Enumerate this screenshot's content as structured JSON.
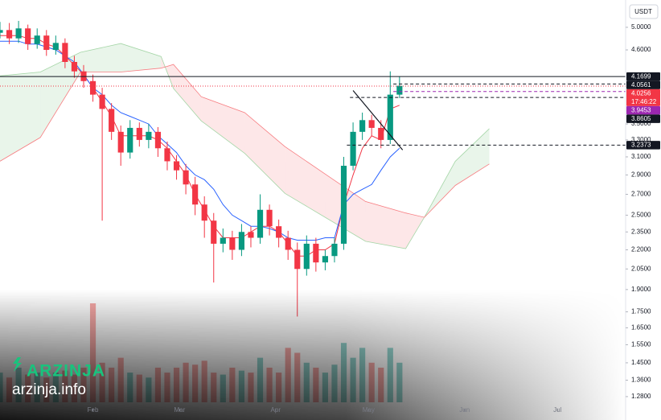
{
  "chart_data": {
    "type": "candlestick",
    "currency": "USDT",
    "watermark": {
      "brand": "ARZINJA",
      "site": "arzinja.info"
    },
    "log_scale": true,
    "grid": false,
    "up_color": "#089981",
    "down_color": "#f23645",
    "volume_up_color": "rgba(38,166,154,0.5)",
    "volume_down_color": "rgba(239,83,80,0.5)",
    "conversion_color": "#f23645",
    "base_color": "#2962ff",
    "cloud_up_color": "rgba(76,175,80,0.12)",
    "cloud_down_color": "rgba(242,54,69,0.12)",
    "span_a_color": "#a5d6a7",
    "span_b_color": "#f77c80",
    "xlim": [
      1,
      203
    ],
    "xticks": [
      {
        "value": 31,
        "label": "Feb"
      },
      {
        "value": 59,
        "label": "Mar"
      },
      {
        "value": 90,
        "label": "Apr"
      },
      {
        "value": 120,
        "label": "May"
      },
      {
        "value": 151,
        "label": "Jun"
      },
      {
        "value": 181,
        "label": "Jul"
      }
    ],
    "ylim": [
      1.224,
      5.53
    ],
    "yticks": [
      {
        "value": 5,
        "label": "5.0000"
      },
      {
        "value": 4.6,
        "label": "4.6000"
      },
      {
        "value": 3.5,
        "label": "3.5000"
      },
      {
        "value": 3.3,
        "label": "3.3000"
      },
      {
        "value": 3.1,
        "label": "3.1000"
      },
      {
        "value": 2.9,
        "label": "2.9000"
      },
      {
        "value": 2.7,
        "label": "2.7000"
      },
      {
        "value": 2.5,
        "label": "2.5000"
      },
      {
        "value": 2.35,
        "label": "2.3500"
      },
      {
        "value": 2.2,
        "label": "2.2000"
      },
      {
        "value": 2.05,
        "label": "2.0500"
      },
      {
        "value": 1.9,
        "label": "1.9000"
      },
      {
        "value": 1.75,
        "label": "1.7500"
      },
      {
        "value": 1.65,
        "label": "1.6500"
      },
      {
        "value": 1.55,
        "label": "1.5500"
      },
      {
        "value": 1.45,
        "label": "1.4500"
      },
      {
        "value": 1.36,
        "label": "1.3600"
      },
      {
        "value": 1.28,
        "label": "1.2800"
      }
    ],
    "x": [
      1,
      4,
      7,
      10,
      13,
      16,
      19,
      22,
      25,
      28,
      31,
      34,
      37,
      40,
      43,
      46,
      49,
      52,
      55,
      58,
      61,
      64,
      67,
      70,
      73,
      76,
      79,
      82,
      85,
      88,
      91,
      94,
      97,
      100,
      103,
      106,
      109,
      112,
      115,
      118,
      121,
      124,
      127,
      130
    ],
    "open": [
      4.9,
      4.95,
      4.8,
      4.98,
      4.7,
      4.85,
      4.6,
      4.72,
      4.4,
      4.25,
      4.1,
      3.9,
      3.7,
      3.4,
      3.15,
      3.45,
      3.3,
      3.4,
      3.2,
      3.05,
      2.95,
      2.8,
      2.6,
      2.45,
      2.25,
      2.3,
      2.2,
      2.35,
      2.3,
      2.55,
      2.4,
      2.3,
      2.2,
      2.05,
      2.25,
      2.1,
      2.15,
      2.25,
      3.0,
      3.4,
      3.55,
      3.45,
      3.3,
      3.9
    ],
    "high": [
      5.1,
      5.08,
      5.12,
      5.05,
      4.98,
      4.95,
      4.85,
      4.8,
      4.5,
      4.35,
      4.2,
      4.0,
      3.78,
      3.48,
      3.55,
      3.52,
      3.5,
      3.46,
      3.28,
      3.12,
      3.02,
      2.88,
      2.68,
      2.52,
      2.38,
      2.36,
      2.42,
      2.4,
      2.7,
      2.6,
      2.46,
      2.36,
      2.26,
      2.32,
      2.3,
      2.2,
      2.3,
      3.1,
      3.52,
      3.65,
      3.62,
      3.55,
      4.25,
      4.17
    ],
    "low": [
      4.8,
      4.7,
      4.72,
      4.6,
      4.62,
      4.5,
      4.52,
      4.3,
      4.15,
      4.0,
      3.8,
      2.45,
      3.3,
      3.0,
      3.08,
      3.22,
      3.2,
      3.1,
      2.95,
      2.85,
      2.7,
      2.5,
      2.3,
      1.95,
      2.18,
      2.12,
      2.15,
      2.22,
      2.25,
      2.32,
      2.22,
      2.12,
      1.72,
      2.0,
      2.03,
      2.04,
      2.1,
      2.2,
      2.95,
      3.3,
      3.35,
      3.2,
      3.25,
      3.85
    ],
    "close": [
      4.95,
      4.8,
      4.98,
      4.7,
      4.85,
      4.6,
      4.72,
      4.4,
      4.25,
      4.1,
      3.9,
      3.7,
      3.4,
      3.15,
      3.45,
      3.3,
      3.4,
      3.2,
      3.05,
      2.95,
      2.8,
      2.6,
      2.45,
      2.25,
      2.3,
      2.2,
      2.35,
      2.3,
      2.55,
      2.4,
      2.3,
      2.2,
      2.05,
      2.25,
      2.1,
      2.15,
      2.25,
      3.0,
      3.4,
      3.55,
      3.45,
      3.3,
      3.9,
      4.03
    ],
    "volume": [
      30,
      25,
      35,
      28,
      30,
      25,
      30,
      32,
      28,
      35,
      100,
      40,
      35,
      45,
      30,
      28,
      25,
      35,
      30,
      35,
      40,
      38,
      42,
      30,
      28,
      35,
      32,
      30,
      45,
      35,
      30,
      55,
      50,
      40,
      35,
      30,
      38,
      60,
      45,
      55,
      40,
      35,
      55,
      40
    ],
    "conversion": [
      4.85,
      4.85,
      4.85,
      4.8,
      4.8,
      4.7,
      4.65,
      4.5,
      4.35,
      4.2,
      4.0,
      3.8,
      3.6,
      3.35,
      3.35,
      3.35,
      3.35,
      3.3,
      3.2,
      3.05,
      2.9,
      2.7,
      2.55,
      2.4,
      2.3,
      2.3,
      2.3,
      2.35,
      2.4,
      2.4,
      2.35,
      2.25,
      2.15,
      2.15,
      2.2,
      2.2,
      2.25,
      2.6,
      2.9,
      3.2,
      3.35,
      3.3,
      3.7,
      3.75
    ],
    "base": [
      4.75,
      4.75,
      4.75,
      4.7,
      4.7,
      4.65,
      4.6,
      4.5,
      4.4,
      4.2,
      4.0,
      3.9,
      3.75,
      3.65,
      3.6,
      3.55,
      3.5,
      3.35,
      3.25,
      3.15,
      3.0,
      2.9,
      2.85,
      2.75,
      2.6,
      2.5,
      2.45,
      2.4,
      2.4,
      2.38,
      2.35,
      2.3,
      2.28,
      2.28,
      2.28,
      2.3,
      2.3,
      2.6,
      2.7,
      2.75,
      2.8,
      2.95,
      3.1,
      3.2
    ],
    "cloud": {
      "x": [
        1,
        14,
        27,
        40,
        53,
        57,
        66,
        80,
        93,
        106,
        119,
        132,
        138,
        148,
        159
      ],
      "span_a": [
        4.18,
        4.24,
        4.56,
        4.71,
        4.49,
        3.99,
        3.54,
        3.14,
        2.71,
        2.48,
        2.27,
        2.21,
        2.48,
        3.05,
        3.44
      ],
      "span_b": [
        3.05,
        3.33,
        4.24,
        4.24,
        4.3,
        4.36,
        3.87,
        3.65,
        3.22,
        2.91,
        2.63,
        2.52,
        2.48,
        2.79,
        3.02
      ]
    },
    "trendline": {
      "x": [
        115,
        131
      ],
      "y": [
        3.96,
        3.18
      ]
    },
    "price_levels": [
      {
        "value": 4.1699,
        "x0": 1,
        "color": "#131722",
        "style": "solid"
      },
      {
        "value": 4.0561,
        "x0": 128,
        "color": "#131722",
        "style": "dashed"
      },
      {
        "value": 4.0256,
        "x0": 1,
        "color": "#f23645",
        "style": "dotted",
        "countdown": "17:46:22"
      },
      {
        "value": 3.9453,
        "x0": 128,
        "color": "#9c27b0",
        "style": "dashed"
      },
      {
        "value": 3.8605,
        "x0": 114,
        "color": "#131722",
        "style": "dashed"
      },
      {
        "value": 3.2373,
        "x0": 113,
        "color": "#131722",
        "style": "dashed"
      }
    ]
  }
}
